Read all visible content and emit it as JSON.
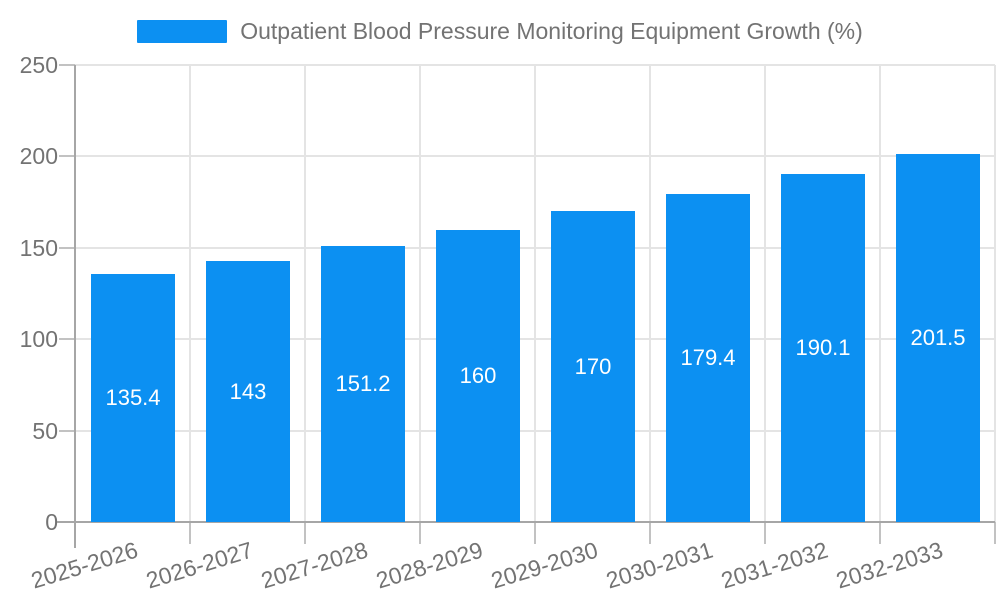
{
  "chart_data": {
    "type": "bar",
    "title": "Outpatient Blood Pressure Monitoring Equipment Growth (%)",
    "categories": [
      "2025-2026",
      "2026-2027",
      "2027-2028",
      "2028-2029",
      "2029-2030",
      "2030-2031",
      "2031-2032",
      "2032-2033"
    ],
    "values": [
      135.4,
      143,
      151.2,
      160,
      170,
      179.4,
      190.1,
      201.5
    ],
    "value_labels": [
      "135.4",
      "143",
      "151.2",
      "160",
      "170",
      "179.4",
      "190.1",
      "201.5"
    ],
    "xlabel": "",
    "ylabel": "",
    "ylim": [
      0,
      250
    ],
    "yticks": [
      0,
      50,
      100,
      150,
      200,
      250
    ],
    "grid": true,
    "legend_position": "top-center",
    "colors": {
      "bar": "#0C90F2",
      "grid": "#E4E4E4",
      "tick": "#C2C2C2",
      "axis": "#A6A6A6",
      "text": "#737373",
      "value_text": "#FFFFFF",
      "background": "#FFFFFF"
    }
  }
}
